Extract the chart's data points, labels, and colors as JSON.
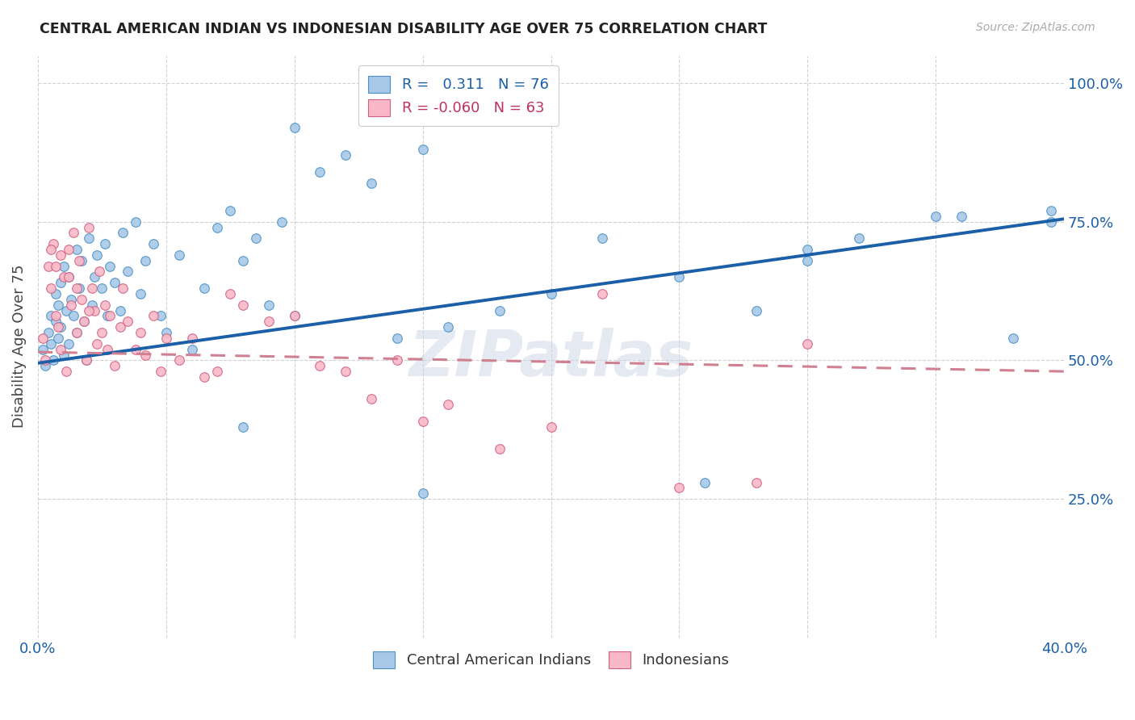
{
  "title": "CENTRAL AMERICAN INDIAN VS INDONESIAN DISABILITY AGE OVER 75 CORRELATION CHART",
  "source": "Source: ZipAtlas.com",
  "ylabel": "Disability Age Over 75",
  "x_min": 0.0,
  "x_max": 0.4,
  "y_min": 0.0,
  "y_max": 1.05,
  "r_blue": 0.311,
  "n_blue": 76,
  "r_pink": -0.06,
  "n_pink": 63,
  "blue_color": "#a8c8e8",
  "blue_edge_color": "#4a90c4",
  "pink_color": "#f9b8c8",
  "pink_edge_color": "#d06080",
  "blue_line_color": "#1a5fa8",
  "pink_line_color": "#d08090",
  "watermark": "ZIPatlas",
  "legend_labels": [
    "Central American Indians",
    "Indonesians"
  ],
  "blue_line_x": [
    0.0,
    0.4
  ],
  "blue_line_y": [
    0.495,
    0.755
  ],
  "pink_line_x": [
    0.0,
    0.4
  ],
  "pink_line_y": [
    0.515,
    0.48
  ],
  "blue_scatter_x": [
    0.002,
    0.003,
    0.004,
    0.005,
    0.005,
    0.006,
    0.007,
    0.007,
    0.008,
    0.008,
    0.009,
    0.009,
    0.01,
    0.01,
    0.011,
    0.012,
    0.012,
    0.013,
    0.014,
    0.015,
    0.015,
    0.016,
    0.017,
    0.018,
    0.019,
    0.02,
    0.021,
    0.022,
    0.023,
    0.025,
    0.026,
    0.027,
    0.028,
    0.03,
    0.032,
    0.033,
    0.035,
    0.038,
    0.04,
    0.042,
    0.045,
    0.048,
    0.05,
    0.055,
    0.06,
    0.065,
    0.07,
    0.075,
    0.08,
    0.085,
    0.09,
    0.095,
    0.1,
    0.11,
    0.12,
    0.13,
    0.14,
    0.15,
    0.16,
    0.18,
    0.2,
    0.22,
    0.25,
    0.28,
    0.3,
    0.32,
    0.35,
    0.36,
    0.38,
    0.395,
    0.15,
    0.1,
    0.08,
    0.26,
    0.3,
    0.395
  ],
  "blue_scatter_y": [
    0.52,
    0.49,
    0.55,
    0.58,
    0.53,
    0.5,
    0.62,
    0.57,
    0.54,
    0.6,
    0.56,
    0.64,
    0.51,
    0.67,
    0.59,
    0.53,
    0.65,
    0.61,
    0.58,
    0.55,
    0.7,
    0.63,
    0.68,
    0.57,
    0.5,
    0.72,
    0.6,
    0.65,
    0.69,
    0.63,
    0.71,
    0.58,
    0.67,
    0.64,
    0.59,
    0.73,
    0.66,
    0.75,
    0.62,
    0.68,
    0.71,
    0.58,
    0.55,
    0.69,
    0.52,
    0.63,
    0.74,
    0.77,
    0.68,
    0.72,
    0.6,
    0.75,
    0.58,
    0.84,
    0.87,
    0.82,
    0.54,
    0.26,
    0.56,
    0.59,
    0.62,
    0.72,
    0.65,
    0.59,
    0.68,
    0.72,
    0.76,
    0.76,
    0.54,
    0.77,
    0.88,
    0.92,
    0.38,
    0.28,
    0.7,
    0.75
  ],
  "pink_scatter_x": [
    0.002,
    0.003,
    0.004,
    0.005,
    0.006,
    0.007,
    0.008,
    0.009,
    0.01,
    0.011,
    0.012,
    0.013,
    0.014,
    0.015,
    0.016,
    0.017,
    0.018,
    0.019,
    0.02,
    0.021,
    0.022,
    0.023,
    0.024,
    0.025,
    0.026,
    0.027,
    0.028,
    0.03,
    0.032,
    0.033,
    0.035,
    0.038,
    0.04,
    0.042,
    0.045,
    0.048,
    0.05,
    0.055,
    0.06,
    0.065,
    0.07,
    0.075,
    0.08,
    0.09,
    0.1,
    0.11,
    0.12,
    0.13,
    0.14,
    0.15,
    0.16,
    0.18,
    0.2,
    0.22,
    0.25,
    0.28,
    0.3,
    0.005,
    0.007,
    0.009,
    0.012,
    0.015,
    0.02
  ],
  "pink_scatter_y": [
    0.54,
    0.5,
    0.67,
    0.63,
    0.71,
    0.58,
    0.56,
    0.52,
    0.65,
    0.48,
    0.7,
    0.6,
    0.73,
    0.55,
    0.68,
    0.61,
    0.57,
    0.5,
    0.74,
    0.63,
    0.59,
    0.53,
    0.66,
    0.55,
    0.6,
    0.52,
    0.58,
    0.49,
    0.56,
    0.63,
    0.57,
    0.52,
    0.55,
    0.51,
    0.58,
    0.48,
    0.54,
    0.5,
    0.54,
    0.47,
    0.48,
    0.62,
    0.6,
    0.57,
    0.58,
    0.49,
    0.48,
    0.43,
    0.5,
    0.39,
    0.42,
    0.34,
    0.38,
    0.62,
    0.27,
    0.28,
    0.53,
    0.7,
    0.67,
    0.69,
    0.65,
    0.63,
    0.59
  ]
}
